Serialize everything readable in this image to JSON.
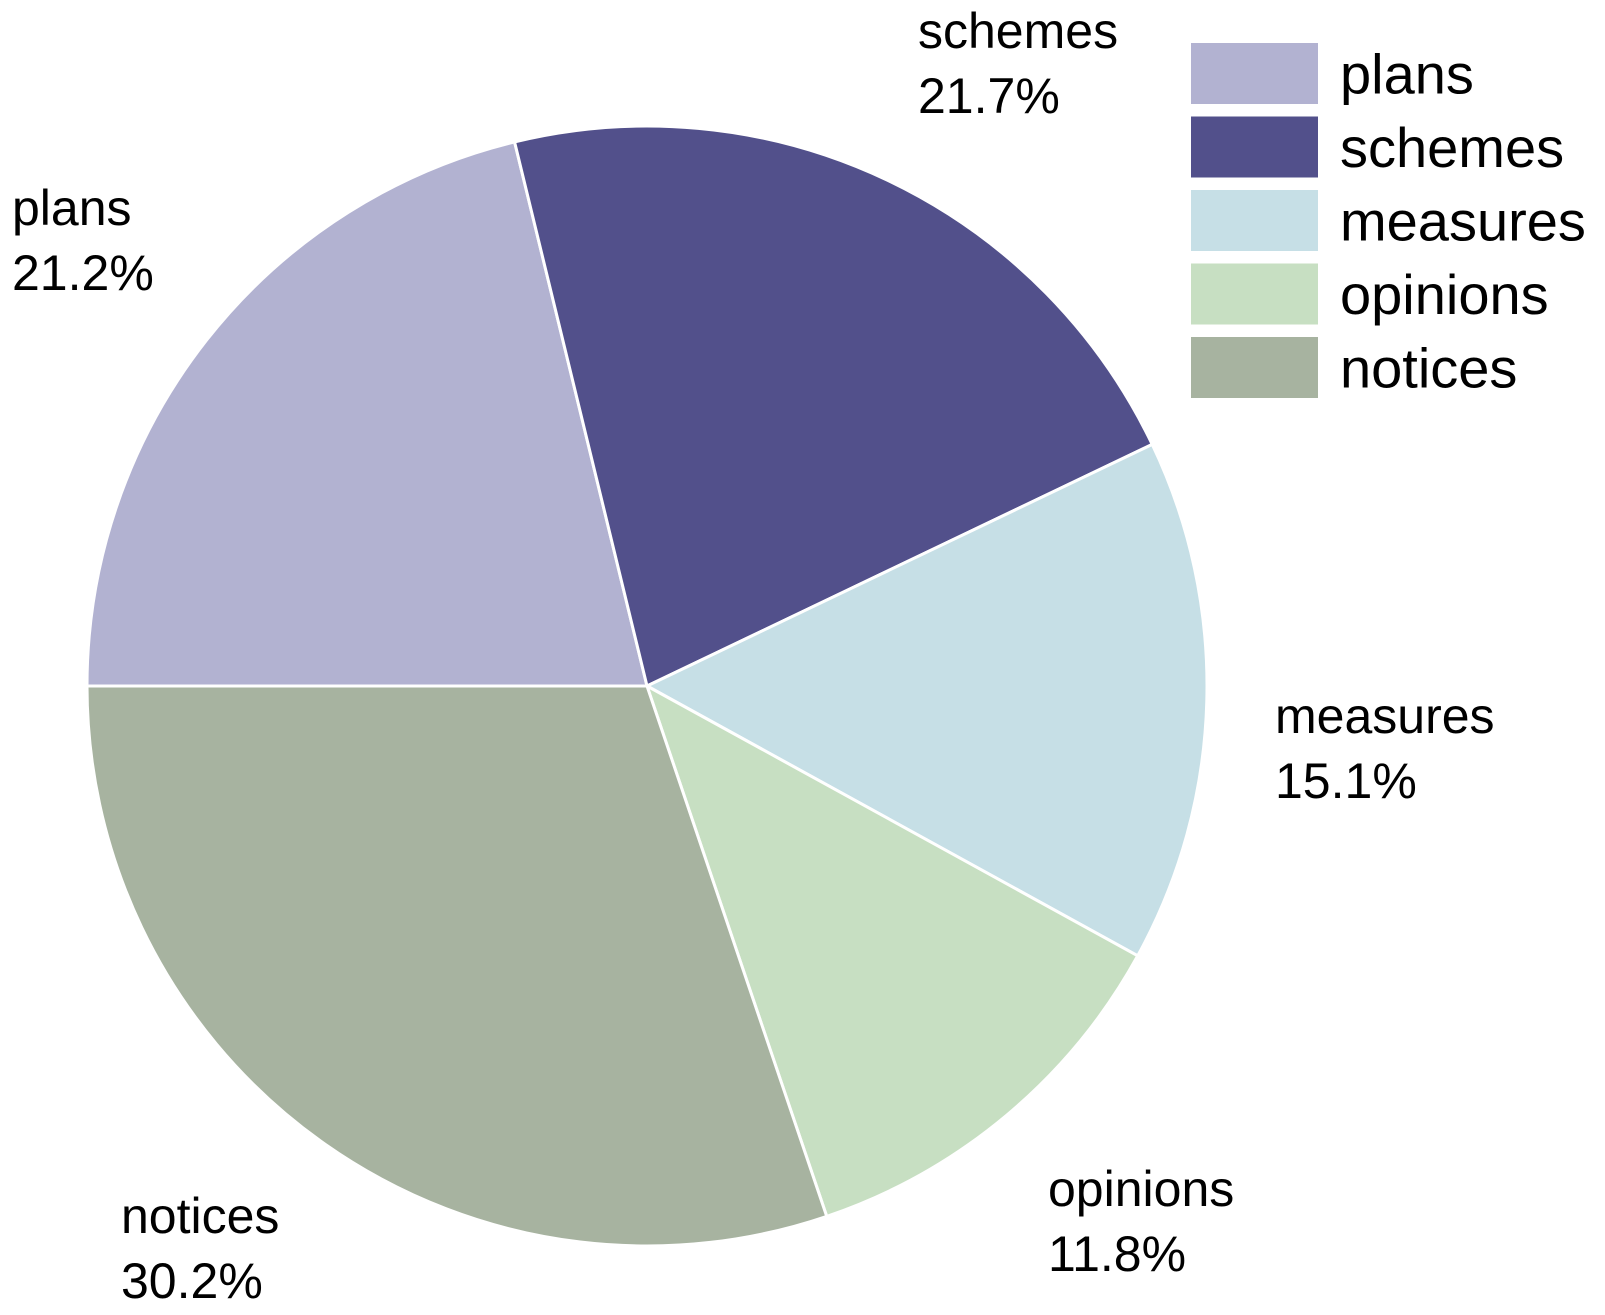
{
  "chart_data": {
    "type": "pie",
    "title": "",
    "categories": [
      "plans",
      "schemes",
      "measures",
      "opinions",
      "notices"
    ],
    "values": [
      21.2,
      21.7,
      15.1,
      11.8,
      30.2
    ],
    "value_labels": [
      "21.2%",
      "21.7%",
      "15.1%",
      "11.8%",
      "30.2%"
    ],
    "colors": [
      "#b2b2d1",
      "#52508b",
      "#c6dfe6",
      "#c7dfc2",
      "#a7b3a0"
    ],
    "start_angle_deg": 180,
    "direction": "clockwise",
    "slice_border_color": "#ffffff",
    "legend": {
      "position": "top-right",
      "entries": [
        "plans",
        "schemes",
        "measures",
        "opinions",
        "notices"
      ]
    }
  }
}
